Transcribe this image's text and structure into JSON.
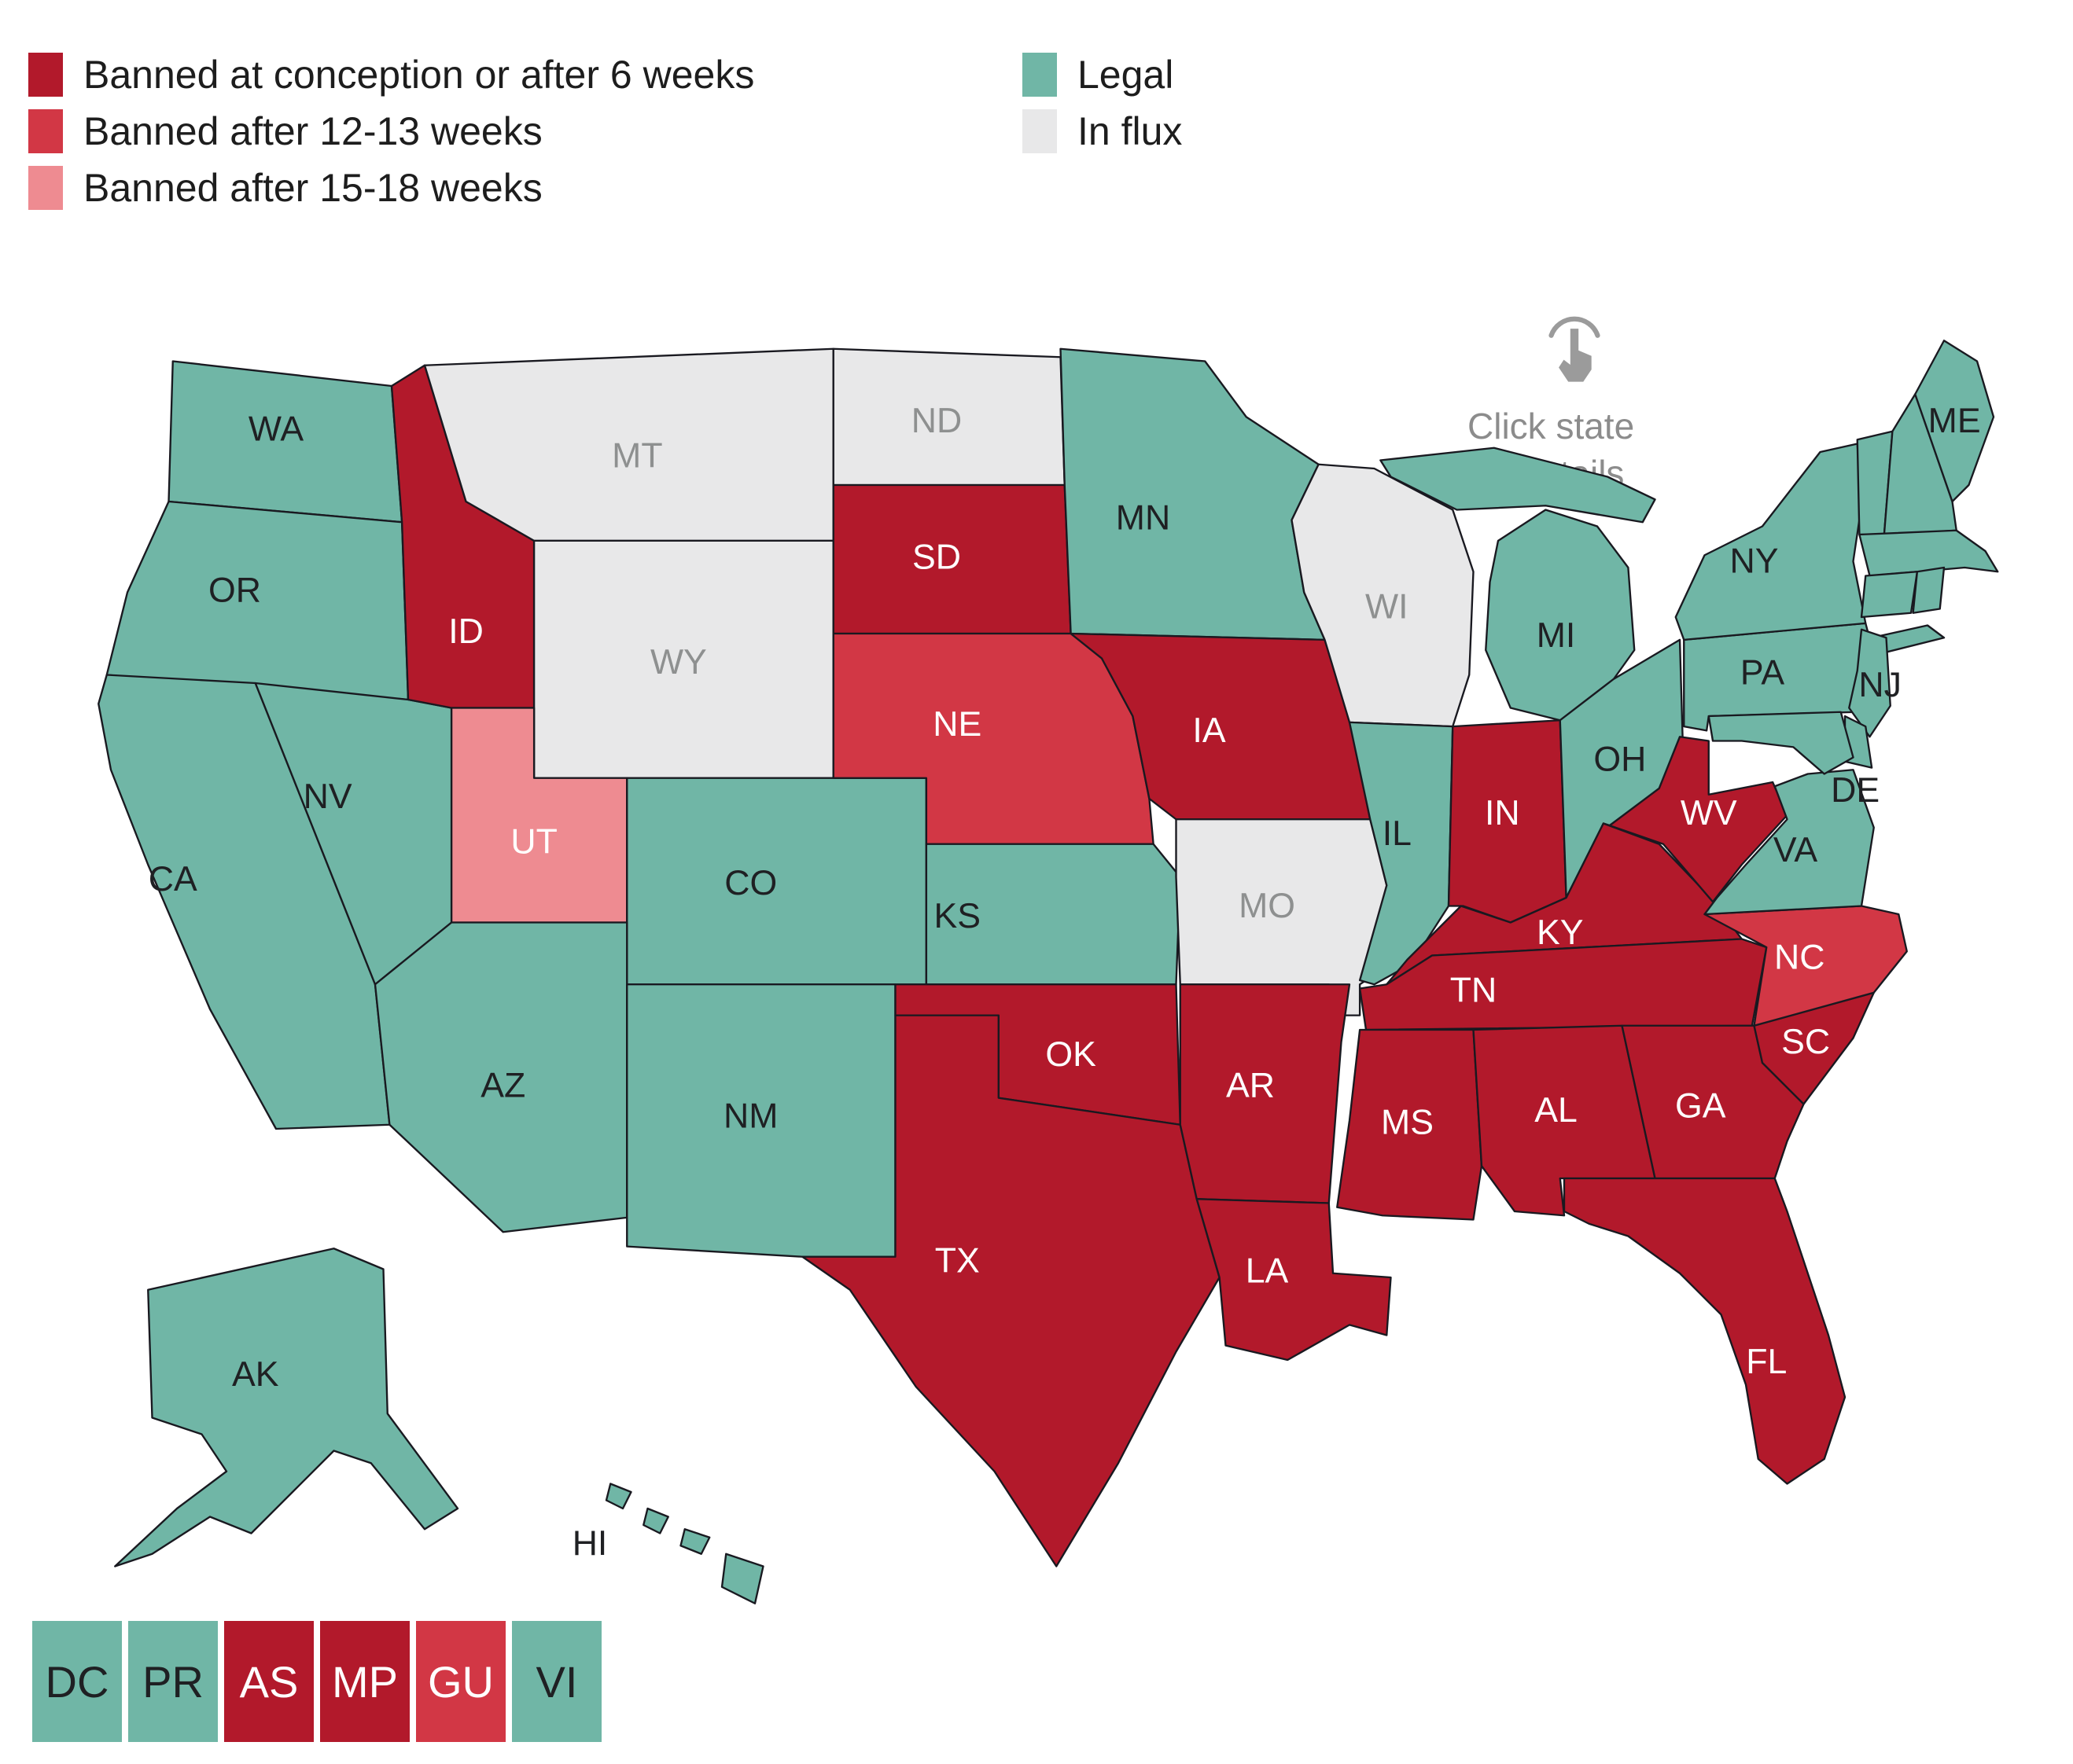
{
  "legend": {
    "left": [
      {
        "status": "ban6",
        "label": "Banned at conception or after 6 weeks"
      },
      {
        "status": "ban12",
        "label": "Banned after 12-13 weeks"
      },
      {
        "status": "ban15",
        "label": "Banned after 15-18 weeks"
      }
    ],
    "right": [
      {
        "status": "legal",
        "label": "Legal"
      },
      {
        "status": "influx",
        "label": "In flux"
      }
    ]
  },
  "statuses": {
    "ban6": {
      "name": "Banned at conception or after 6 weeks",
      "color": "#b2192b",
      "label_color": "#ffffff"
    },
    "ban12": {
      "name": "Banned after 12-13 weeks",
      "color": "#d23745",
      "label_color": "#ffffff"
    },
    "ban15": {
      "name": "Banned after 15-18 weeks",
      "color": "#ee8b91",
      "label_color": "#ffffff"
    },
    "legal": {
      "name": "Legal",
      "color": "#70b6a6",
      "label_color": "#1f2023"
    },
    "influx": {
      "name": "In flux",
      "color": "#e8e8e9",
      "label_color": "#8e9090"
    }
  },
  "annotation": {
    "line1": "Click state",
    "line2": "for details",
    "icon": "hand-cursor-icon",
    "color": "#8c8c8c"
  },
  "map": {
    "states": [
      {
        "abbr": "WA",
        "status": "legal",
        "labeled": true
      },
      {
        "abbr": "OR",
        "status": "legal",
        "labeled": true
      },
      {
        "abbr": "CA",
        "status": "legal",
        "labeled": true
      },
      {
        "abbr": "NV",
        "status": "legal",
        "labeled": true
      },
      {
        "abbr": "ID",
        "status": "ban6",
        "labeled": true
      },
      {
        "abbr": "MT",
        "status": "influx",
        "labeled": true
      },
      {
        "abbr": "WY",
        "status": "influx",
        "labeled": true
      },
      {
        "abbr": "UT",
        "status": "ban15",
        "labeled": true
      },
      {
        "abbr": "CO",
        "status": "legal",
        "labeled": true
      },
      {
        "abbr": "AZ",
        "status": "legal",
        "labeled": true
      },
      {
        "abbr": "NM",
        "status": "legal",
        "labeled": true
      },
      {
        "abbr": "ND",
        "status": "influx",
        "labeled": true
      },
      {
        "abbr": "SD",
        "status": "ban6",
        "labeled": true
      },
      {
        "abbr": "NE",
        "status": "ban12",
        "labeled": true
      },
      {
        "abbr": "KS",
        "status": "legal",
        "labeled": true
      },
      {
        "abbr": "OK",
        "status": "ban6",
        "labeled": true
      },
      {
        "abbr": "TX",
        "status": "ban6",
        "labeled": true
      },
      {
        "abbr": "MN",
        "status": "legal",
        "labeled": true
      },
      {
        "abbr": "IA",
        "status": "ban6",
        "labeled": true
      },
      {
        "abbr": "MO",
        "status": "influx",
        "labeled": true
      },
      {
        "abbr": "AR",
        "status": "ban6",
        "labeled": true
      },
      {
        "abbr": "LA",
        "status": "ban6",
        "labeled": true
      },
      {
        "abbr": "WI",
        "status": "influx",
        "labeled": true
      },
      {
        "abbr": "IL",
        "status": "legal",
        "labeled": true
      },
      {
        "abbr": "MI",
        "status": "legal",
        "labeled": true
      },
      {
        "abbr": "IN",
        "status": "ban6",
        "labeled": true
      },
      {
        "abbr": "OH",
        "status": "legal",
        "labeled": true
      },
      {
        "abbr": "KY",
        "status": "ban6",
        "labeled": true
      },
      {
        "abbr": "TN",
        "status": "ban6",
        "labeled": true
      },
      {
        "abbr": "MS",
        "status": "ban6",
        "labeled": true
      },
      {
        "abbr": "AL",
        "status": "ban6",
        "labeled": true
      },
      {
        "abbr": "GA",
        "status": "ban6",
        "labeled": true
      },
      {
        "abbr": "SC",
        "status": "ban6",
        "labeled": true
      },
      {
        "abbr": "NC",
        "status": "ban12",
        "labeled": true
      },
      {
        "abbr": "WV",
        "status": "ban6",
        "labeled": true
      },
      {
        "abbr": "VA",
        "status": "legal",
        "labeled": true
      },
      {
        "abbr": "FL",
        "status": "ban6",
        "labeled": true
      },
      {
        "abbr": "PA",
        "status": "legal",
        "labeled": true
      },
      {
        "abbr": "NY",
        "status": "legal",
        "labeled": true
      },
      {
        "abbr": "NJ",
        "status": "legal",
        "labeled": true
      },
      {
        "abbr": "DE",
        "status": "legal",
        "labeled": true
      },
      {
        "abbr": "MD",
        "status": "legal",
        "labeled": false
      },
      {
        "abbr": "VT",
        "status": "legal",
        "labeled": false
      },
      {
        "abbr": "NH",
        "status": "legal",
        "labeled": false
      },
      {
        "abbr": "MA",
        "status": "legal",
        "labeled": false
      },
      {
        "abbr": "CT",
        "status": "legal",
        "labeled": false
      },
      {
        "abbr": "RI",
        "status": "legal",
        "labeled": false
      },
      {
        "abbr": "ME",
        "status": "legal",
        "labeled": true
      },
      {
        "abbr": "AK",
        "status": "legal",
        "labeled": true
      },
      {
        "abbr": "HI",
        "status": "legal",
        "labeled": true
      }
    ]
  },
  "territories": [
    {
      "abbr": "DC",
      "status": "legal"
    },
    {
      "abbr": "PR",
      "status": "legal"
    },
    {
      "abbr": "AS",
      "status": "ban6"
    },
    {
      "abbr": "MP",
      "status": "ban6"
    },
    {
      "abbr": "GU",
      "status": "ban12"
    },
    {
      "abbr": "VI",
      "status": "legal"
    }
  ]
}
